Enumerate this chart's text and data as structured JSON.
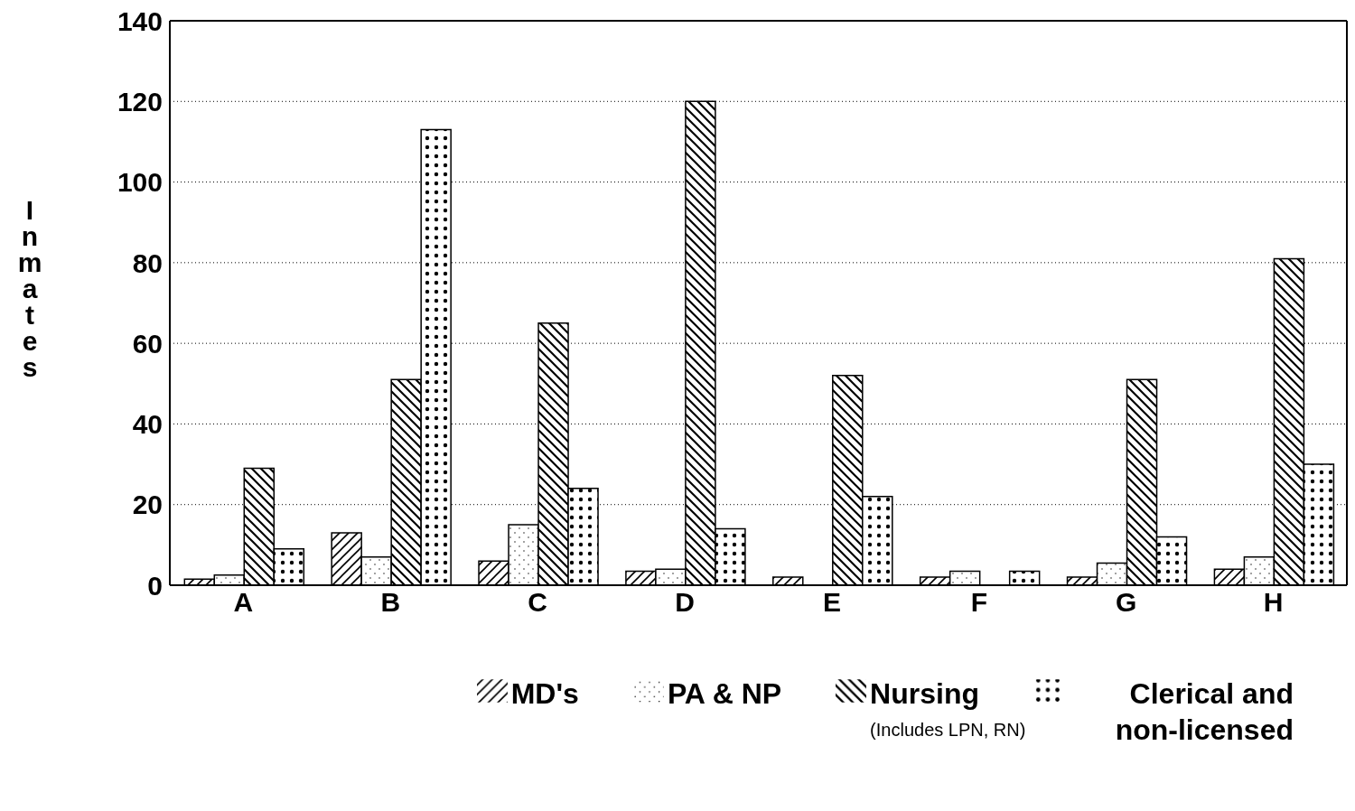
{
  "chart_data": {
    "type": "bar",
    "ylabel": "Inmates",
    "categories": [
      "A",
      "B",
      "C",
      "D",
      "E",
      "F",
      "G",
      "H"
    ],
    "series": [
      {
        "name": "MD's",
        "color": "#000000",
        "values": [
          1.5,
          13,
          6,
          3.5,
          2,
          2,
          2,
          4
        ]
      },
      {
        "name": "PA & NP",
        "color": "#000000",
        "values": [
          2.5,
          7,
          15,
          4,
          null,
          3.5,
          5.5,
          7
        ]
      },
      {
        "name": "Nursing",
        "color": "#000000",
        "values": [
          29,
          51,
          65,
          120,
          52,
          null,
          51,
          81
        ]
      },
      {
        "name": "Clerical and non-licensed",
        "color": "#000000",
        "values": [
          9,
          113,
          24,
          14,
          22,
          3.5,
          12,
          30
        ]
      }
    ],
    "ylim": [
      0,
      140
    ],
    "yticks": [
      0,
      20,
      40,
      60,
      80,
      100,
      120,
      140
    ],
    "grid": "y",
    "legend": "bottom",
    "annotations": [
      "(Includes LPN, RN)"
    ]
  }
}
